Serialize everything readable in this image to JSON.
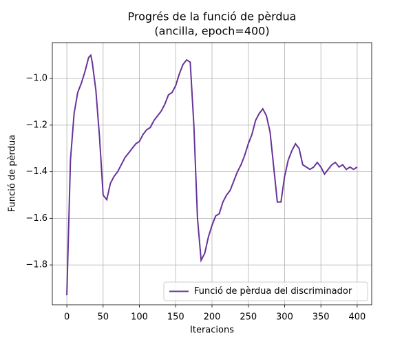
{
  "chart_data": {
    "type": "line",
    "title": "Progrés de la funció de pèrdua",
    "subtitle": "(ancilla, epoch=400)",
    "x_label": "Iteracions",
    "y_label": "Funció de pèrdua",
    "x": [
      0,
      5,
      10,
      15,
      20,
      25,
      30,
      33,
      35,
      40,
      45,
      50,
      55,
      60,
      65,
      70,
      75,
      80,
      85,
      90,
      95,
      100,
      105,
      110,
      115,
      120,
      125,
      130,
      135,
      140,
      145,
      150,
      155,
      160,
      165,
      170,
      175,
      180,
      185,
      190,
      195,
      200,
      205,
      210,
      215,
      220,
      225,
      230,
      235,
      240,
      245,
      250,
      255,
      260,
      265,
      270,
      275,
      280,
      285,
      290,
      295,
      300,
      305,
      310,
      315,
      320,
      325,
      330,
      335,
      340,
      345,
      350,
      355,
      360,
      365,
      370,
      375,
      380,
      385,
      390,
      395,
      400
    ],
    "series": [
      {
        "name": "Funció de pèrdua del discriminador",
        "color": "#663399",
        "values": [
          -1.93,
          -1.35,
          -1.15,
          -1.06,
          -1.02,
          -0.97,
          -0.91,
          -0.9,
          -0.93,
          -1.05,
          -1.25,
          -1.5,
          -1.52,
          -1.45,
          -1.42,
          -1.4,
          -1.37,
          -1.34,
          -1.32,
          -1.3,
          -1.28,
          -1.27,
          -1.24,
          -1.22,
          -1.21,
          -1.18,
          -1.16,
          -1.14,
          -1.11,
          -1.07,
          -1.06,
          -1.03,
          -0.98,
          -0.94,
          -0.92,
          -0.93,
          -1.2,
          -1.6,
          -1.78,
          -1.75,
          -1.68,
          -1.63,
          -1.59,
          -1.58,
          -1.53,
          -1.5,
          -1.48,
          -1.44,
          -1.4,
          -1.37,
          -1.33,
          -1.28,
          -1.24,
          -1.18,
          -1.15,
          -1.13,
          -1.16,
          -1.23,
          -1.38,
          -1.53,
          -1.53,
          -1.42,
          -1.35,
          -1.31,
          -1.28,
          -1.3,
          -1.37,
          -1.38,
          -1.39,
          -1.38,
          -1.36,
          -1.38,
          -1.41,
          -1.39,
          -1.37,
          -1.36,
          -1.38,
          -1.37,
          -1.39,
          -1.38,
          -1.39,
          -1.38
        ]
      }
    ],
    "xlim": [
      -20,
      420
    ],
    "ylim": [
      -1.971,
      -0.846
    ],
    "xticks": [
      0,
      50,
      100,
      150,
      200,
      250,
      300,
      350,
      400
    ],
    "yticks": [
      {
        "value": -1.8,
        "label": "−1.8"
      },
      {
        "value": -1.6,
        "label": "−1.6"
      },
      {
        "value": -1.4,
        "label": "−1.4"
      },
      {
        "value": -1.2,
        "label": "−1.2"
      },
      {
        "value": -1.0,
        "label": "−1.0"
      }
    ],
    "grid": true,
    "legend": "lower right"
  }
}
